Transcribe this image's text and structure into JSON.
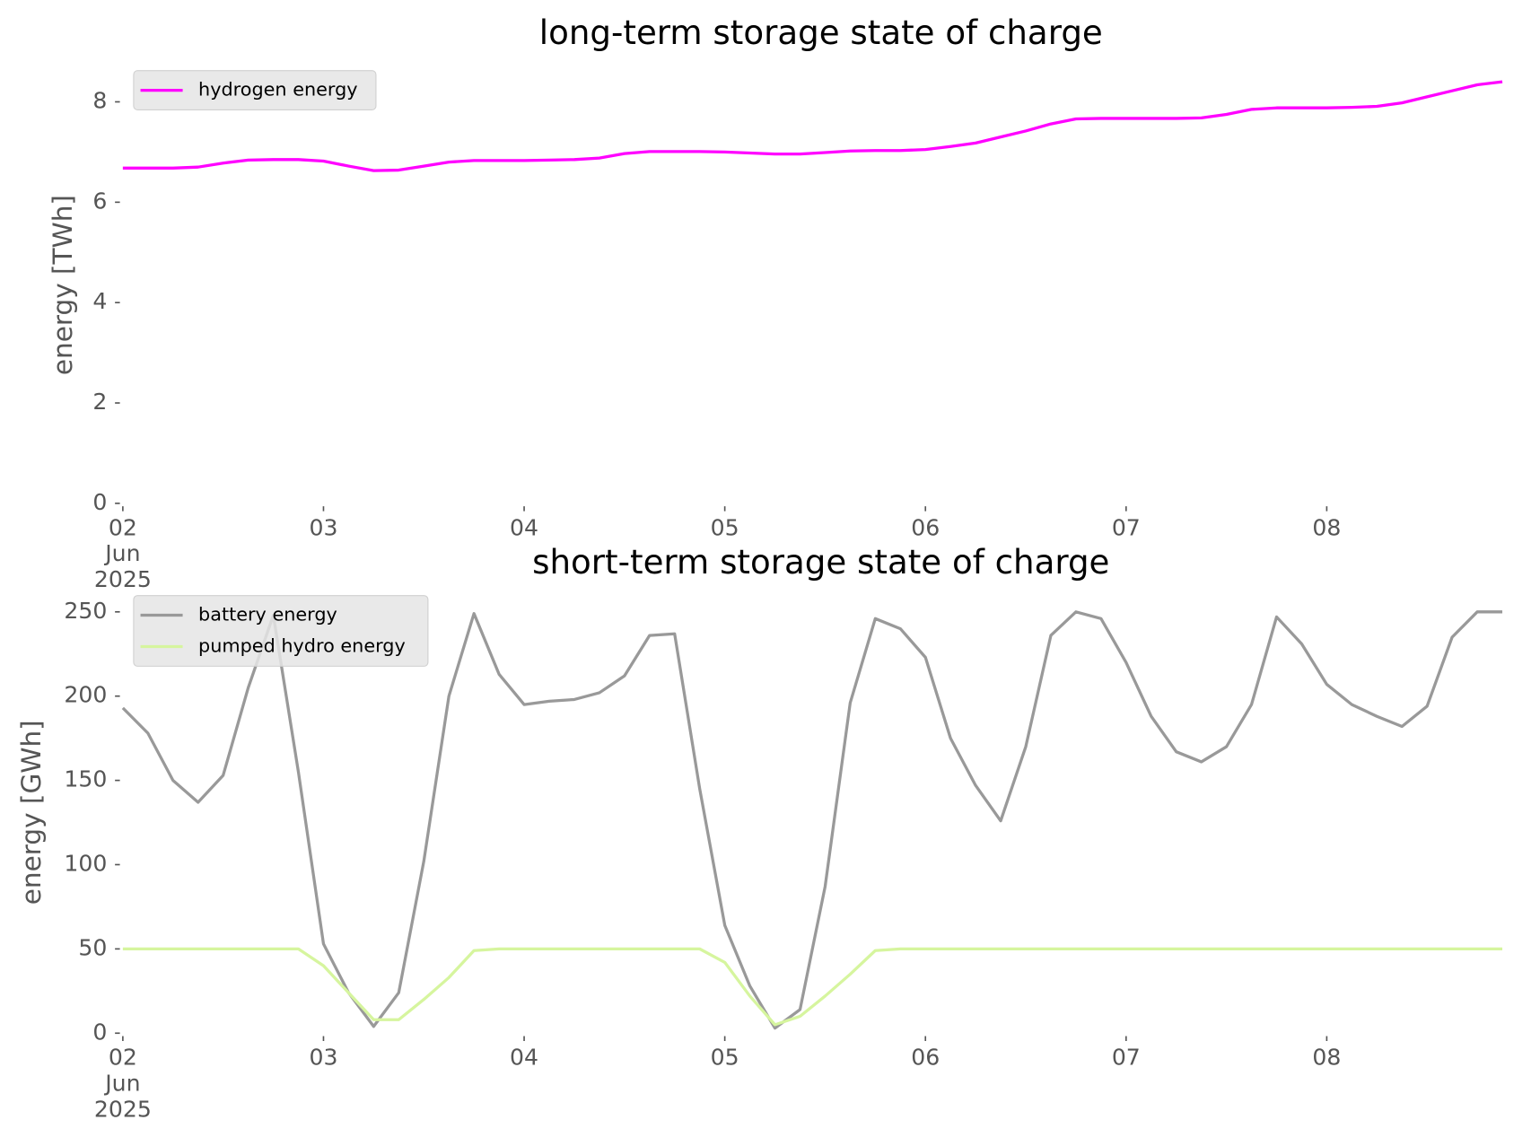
{
  "chart_data": [
    {
      "type": "line",
      "title": "long-term storage state of charge",
      "ylabel": "energy [TWh]",
      "x": [
        "2025-06-02 00:00",
        "2025-06-02 03:00",
        "2025-06-02 06:00",
        "2025-06-02 09:00",
        "2025-06-02 12:00",
        "2025-06-02 15:00",
        "2025-06-02 18:00",
        "2025-06-02 21:00",
        "2025-06-03 00:00",
        "2025-06-03 03:00",
        "2025-06-03 06:00",
        "2025-06-03 09:00",
        "2025-06-03 12:00",
        "2025-06-03 15:00",
        "2025-06-03 18:00",
        "2025-06-03 21:00",
        "2025-06-04 00:00",
        "2025-06-04 03:00",
        "2025-06-04 06:00",
        "2025-06-04 09:00",
        "2025-06-04 12:00",
        "2025-06-04 15:00",
        "2025-06-04 18:00",
        "2025-06-04 21:00",
        "2025-06-05 00:00",
        "2025-06-05 03:00",
        "2025-06-05 06:00",
        "2025-06-05 09:00",
        "2025-06-05 12:00",
        "2025-06-05 15:00",
        "2025-06-05 18:00",
        "2025-06-05 21:00",
        "2025-06-06 00:00",
        "2025-06-06 03:00",
        "2025-06-06 06:00",
        "2025-06-06 09:00",
        "2025-06-06 12:00",
        "2025-06-06 15:00",
        "2025-06-06 18:00",
        "2025-06-06 21:00",
        "2025-06-07 00:00",
        "2025-06-07 03:00",
        "2025-06-07 06:00",
        "2025-06-07 09:00",
        "2025-06-07 12:00",
        "2025-06-07 15:00",
        "2025-06-07 18:00",
        "2025-06-07 21:00",
        "2025-06-08 00:00",
        "2025-06-08 03:00",
        "2025-06-08 06:00",
        "2025-06-08 09:00",
        "2025-06-08 12:00",
        "2025-06-08 15:00",
        "2025-06-08 18:00",
        "2025-06-08 21:00"
      ],
      "series": [
        {
          "name": "hydrogen energy",
          "color": "#ff00ff",
          "values": [
            6.68,
            6.68,
            6.68,
            6.7,
            6.78,
            6.84,
            6.85,
            6.85,
            6.82,
            6.72,
            6.63,
            6.64,
            6.72,
            6.8,
            6.83,
            6.83,
            6.83,
            6.84,
            6.85,
            6.88,
            6.97,
            7.01,
            7.01,
            7.01,
            7.0,
            6.98,
            6.96,
            6.96,
            6.99,
            7.02,
            7.03,
            7.03,
            7.05,
            7.11,
            7.18,
            7.3,
            7.42,
            7.56,
            7.66,
            7.67,
            7.67,
            7.67,
            7.67,
            7.68,
            7.75,
            7.85,
            7.88,
            7.88,
            7.88,
            7.89,
            7.91,
            7.98,
            8.1,
            8.22,
            8.34,
            8.4
          ]
        }
      ],
      "xlim": [
        "2025-06-02 00:00",
        "2025-06-08 23:00"
      ],
      "xticks": [
        {
          "value": "2025-06-02 00:00",
          "label": "02\nJun\n2025"
        },
        {
          "value": "2025-06-03 00:00",
          "label": "03"
        },
        {
          "value": "2025-06-04 00:00",
          "label": "04"
        },
        {
          "value": "2025-06-05 00:00",
          "label": "05"
        },
        {
          "value": "2025-06-06 00:00",
          "label": "06"
        },
        {
          "value": "2025-06-07 00:00",
          "label": "07"
        },
        {
          "value": "2025-06-08 00:00",
          "label": "08"
        }
      ],
      "ylim": [
        0,
        8.7
      ],
      "yticks": [
        0,
        2,
        4,
        6,
        8
      ],
      "legend": "upper left"
    },
    {
      "type": "line",
      "title": "short-term storage state of charge",
      "ylabel": "energy [GWh]",
      "x": [
        "2025-06-02 00:00",
        "2025-06-02 03:00",
        "2025-06-02 06:00",
        "2025-06-02 09:00",
        "2025-06-02 12:00",
        "2025-06-02 15:00",
        "2025-06-02 18:00",
        "2025-06-02 21:00",
        "2025-06-03 00:00",
        "2025-06-03 03:00",
        "2025-06-03 06:00",
        "2025-06-03 09:00",
        "2025-06-03 12:00",
        "2025-06-03 15:00",
        "2025-06-03 18:00",
        "2025-06-03 21:00",
        "2025-06-04 00:00",
        "2025-06-04 03:00",
        "2025-06-04 06:00",
        "2025-06-04 09:00",
        "2025-06-04 12:00",
        "2025-06-04 15:00",
        "2025-06-04 18:00",
        "2025-06-04 21:00",
        "2025-06-05 00:00",
        "2025-06-05 03:00",
        "2025-06-05 06:00",
        "2025-06-05 09:00",
        "2025-06-05 12:00",
        "2025-06-05 15:00",
        "2025-06-05 18:00",
        "2025-06-05 21:00",
        "2025-06-06 00:00",
        "2025-06-06 03:00",
        "2025-06-06 06:00",
        "2025-06-06 09:00",
        "2025-06-06 12:00",
        "2025-06-06 15:00",
        "2025-06-06 18:00",
        "2025-06-06 21:00",
        "2025-06-07 00:00",
        "2025-06-07 03:00",
        "2025-06-07 06:00",
        "2025-06-07 09:00",
        "2025-06-07 12:00",
        "2025-06-07 15:00",
        "2025-06-07 18:00",
        "2025-06-07 21:00",
        "2025-06-08 00:00",
        "2025-06-08 03:00",
        "2025-06-08 06:00",
        "2025-06-08 09:00",
        "2025-06-08 12:00",
        "2025-06-08 15:00",
        "2025-06-08 18:00",
        "2025-06-08 21:00"
      ],
      "series": [
        {
          "name": "battery energy",
          "color": "#999999",
          "values": [
            193,
            178,
            150,
            137,
            153,
            205,
            248,
            155,
            53,
            24,
            4,
            24,
            102,
            200,
            249,
            213,
            195,
            197,
            198,
            202,
            212,
            236,
            237,
            145,
            64,
            28,
            3,
            14,
            87,
            196,
            246,
            240,
            223,
            175,
            147,
            126,
            170,
            236,
            250,
            246,
            220,
            188,
            167,
            161,
            170,
            195,
            247,
            231,
            207,
            195,
            188,
            182,
            194,
            235,
            250,
            250
          ]
        },
        {
          "name": "pumped hydro energy",
          "color": "#d6f59e",
          "values": [
            50,
            50,
            50,
            50,
            50,
            50,
            50,
            50,
            40,
            24,
            8,
            8,
            20,
            33,
            49,
            50,
            50,
            50,
            50,
            50,
            50,
            50,
            50,
            50,
            42,
            22,
            5,
            10,
            22,
            35,
            49,
            50,
            50,
            50,
            50,
            50,
            50,
            50,
            50,
            50,
            50,
            50,
            50,
            50,
            50,
            50,
            50,
            50,
            50,
            50,
            50,
            50,
            50,
            50,
            50,
            50
          ]
        }
      ],
      "xlim": [
        "2025-06-02 00:00",
        "2025-06-08 23:00"
      ],
      "xticks": [
        {
          "value": "2025-06-02 00:00",
          "label": "02\nJun\n2025"
        },
        {
          "value": "2025-06-03 00:00",
          "label": "03"
        },
        {
          "value": "2025-06-04 00:00",
          "label": "04"
        },
        {
          "value": "2025-06-05 00:00",
          "label": "05"
        },
        {
          "value": "2025-06-06 00:00",
          "label": "06"
        },
        {
          "value": "2025-06-07 00:00",
          "label": "07"
        },
        {
          "value": "2025-06-08 00:00",
          "label": "08"
        }
      ],
      "ylim": [
        0,
        262
      ],
      "yticks": [
        0,
        50,
        100,
        150,
        200,
        250
      ],
      "legend": "upper left"
    }
  ]
}
